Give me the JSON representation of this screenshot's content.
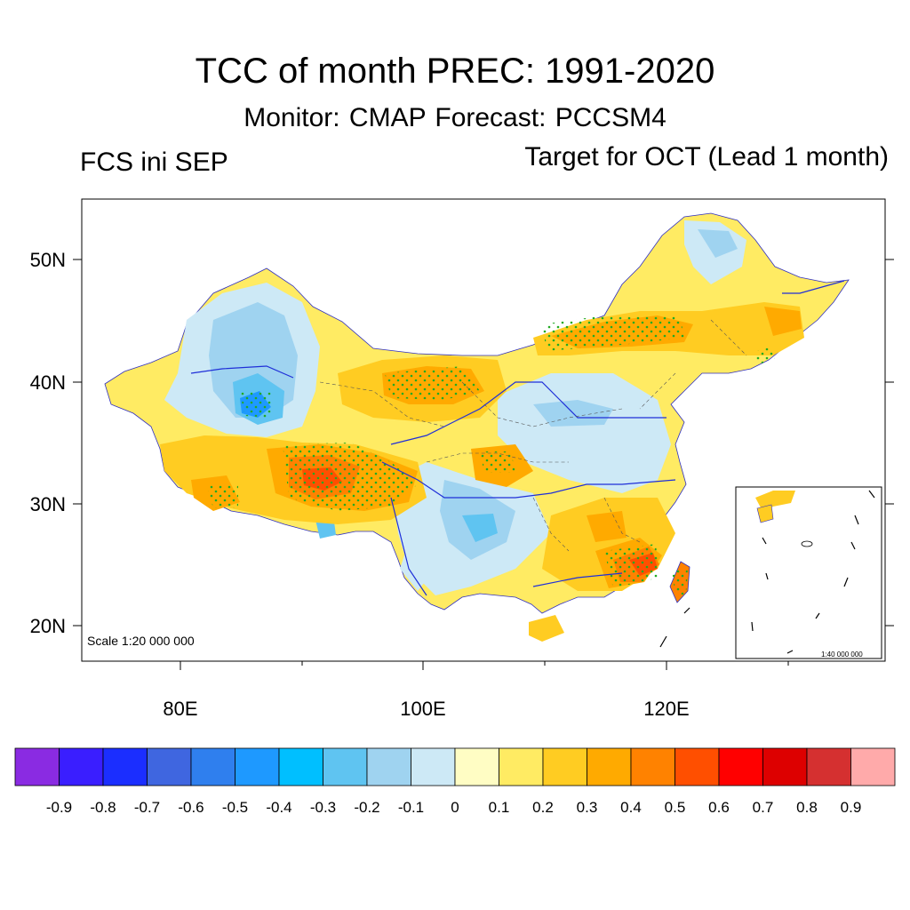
{
  "title": "TCC of month PREC: 1991-2020",
  "subtitle": "Monitor: CMAP   Forecast: PCCSM4",
  "left_string": "FCS ini SEP",
  "right_string": "Target for OCT (Lead 1 month)",
  "map": {
    "lat_ticks": [
      "50N",
      "40N",
      "30N",
      "20N"
    ],
    "lon_ticks": [
      "80E",
      "100E",
      "120E"
    ],
    "scale_text": "Scale 1:20 000 000",
    "inset_scale_text": "1:40 000 000"
  },
  "colorbar": {
    "labels": [
      "-0.9",
      "-0.8",
      "-0.7",
      "-0.6",
      "-0.5",
      "-0.4",
      "-0.3",
      "-0.2",
      "-0.1",
      "0",
      "0.1",
      "0.2",
      "0.3",
      "0.4",
      "0.5",
      "0.6",
      "0.7",
      "0.8",
      "0.9"
    ],
    "colors": [
      "#8a2be2",
      "#3a1eff",
      "#1b2eff",
      "#3f66e0",
      "#2f7fee",
      "#1e99ff",
      "#00bfff",
      "#5fc4f1",
      "#9fd3f0",
      "#cde9f6",
      "#fffdc4",
      "#ffeb63",
      "#ffcc22",
      "#ffaa00",
      "#ff8200",
      "#ff4f00",
      "#ff0000",
      "#dd0000",
      "#d53030",
      "#ffaaaa"
    ]
  }
}
